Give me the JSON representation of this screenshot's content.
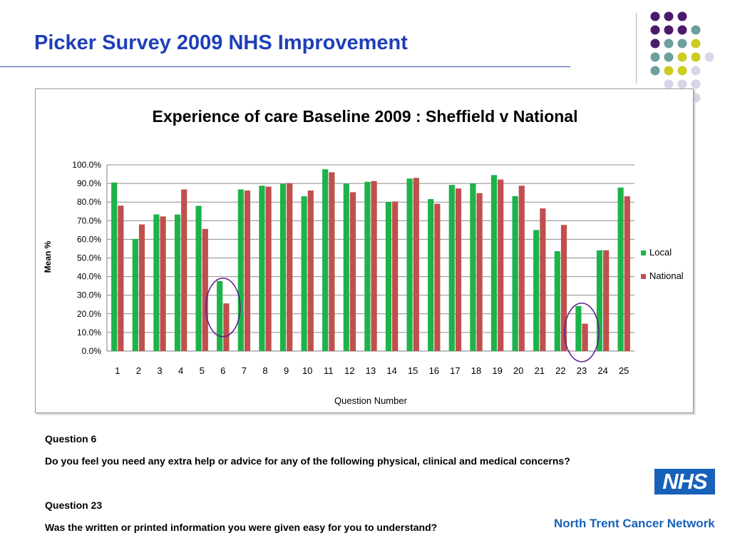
{
  "slide": {
    "title": "Picker Survey 2009 NHS Improvement"
  },
  "decor": {
    "dot_colors": {
      "purple": "#4a1a6b",
      "teal": "#6f9e9e",
      "yellow": "#cccc22",
      "lavender": "#d6d6e8"
    }
  },
  "chart_data": {
    "type": "bar",
    "title": "Experience of care Baseline 2009 : Sheffield v National",
    "xlabel": "Question Number",
    "ylabel": "Mean %",
    "ylim": [
      0,
      100
    ],
    "yticks": [
      "0.0%",
      "10.0%",
      "20.0%",
      "30.0%",
      "40.0%",
      "50.0%",
      "60.0%",
      "70.0%",
      "80.0%",
      "90.0%",
      "100.0%"
    ],
    "categories": [
      "1",
      "2",
      "3",
      "4",
      "5",
      "6",
      "7",
      "8",
      "9",
      "10",
      "11",
      "12",
      "13",
      "14",
      "15",
      "16",
      "17",
      "18",
      "19",
      "20",
      "21",
      "22",
      "23",
      "24",
      "25"
    ],
    "series": [
      {
        "name": "Local",
        "color": "#1db34a",
        "values": [
          90.5,
          60.2,
          73.4,
          73.3,
          78.0,
          37.6,
          86.8,
          88.8,
          89.8,
          83.1,
          97.6,
          89.9,
          90.9,
          80.1,
          92.6,
          81.6,
          89.2,
          90.0,
          94.5,
          83.2,
          65.0,
          53.6,
          24.2,
          54.1,
          87.8
        ]
      },
      {
        "name": "National",
        "color": "#c0504d",
        "values": [
          78.1,
          68.0,
          72.3,
          86.8,
          65.6,
          25.6,
          86.2,
          88.3,
          90.2,
          86.2,
          96.0,
          85.3,
          91.3,
          80.3,
          93.0,
          79.1,
          87.3,
          84.8,
          92.1,
          88.8,
          76.6,
          67.7,
          14.7,
          54.1,
          83.1
        ]
      }
    ],
    "legend": "right",
    "grid": true,
    "highlighted_questions": [
      "6",
      "23"
    ]
  },
  "notes": {
    "q6_heading": "Question 6",
    "q6_text": "Do you feel you need any extra help or advice for any of the following physical, clinical and medical concerns?",
    "q23_heading": "Question 23",
    "q23_text": "Was the written or printed information you were given easy for you to understand?"
  },
  "branding": {
    "nhs_logo_text": "NHS",
    "network_name": "North Trent Cancer Network"
  }
}
